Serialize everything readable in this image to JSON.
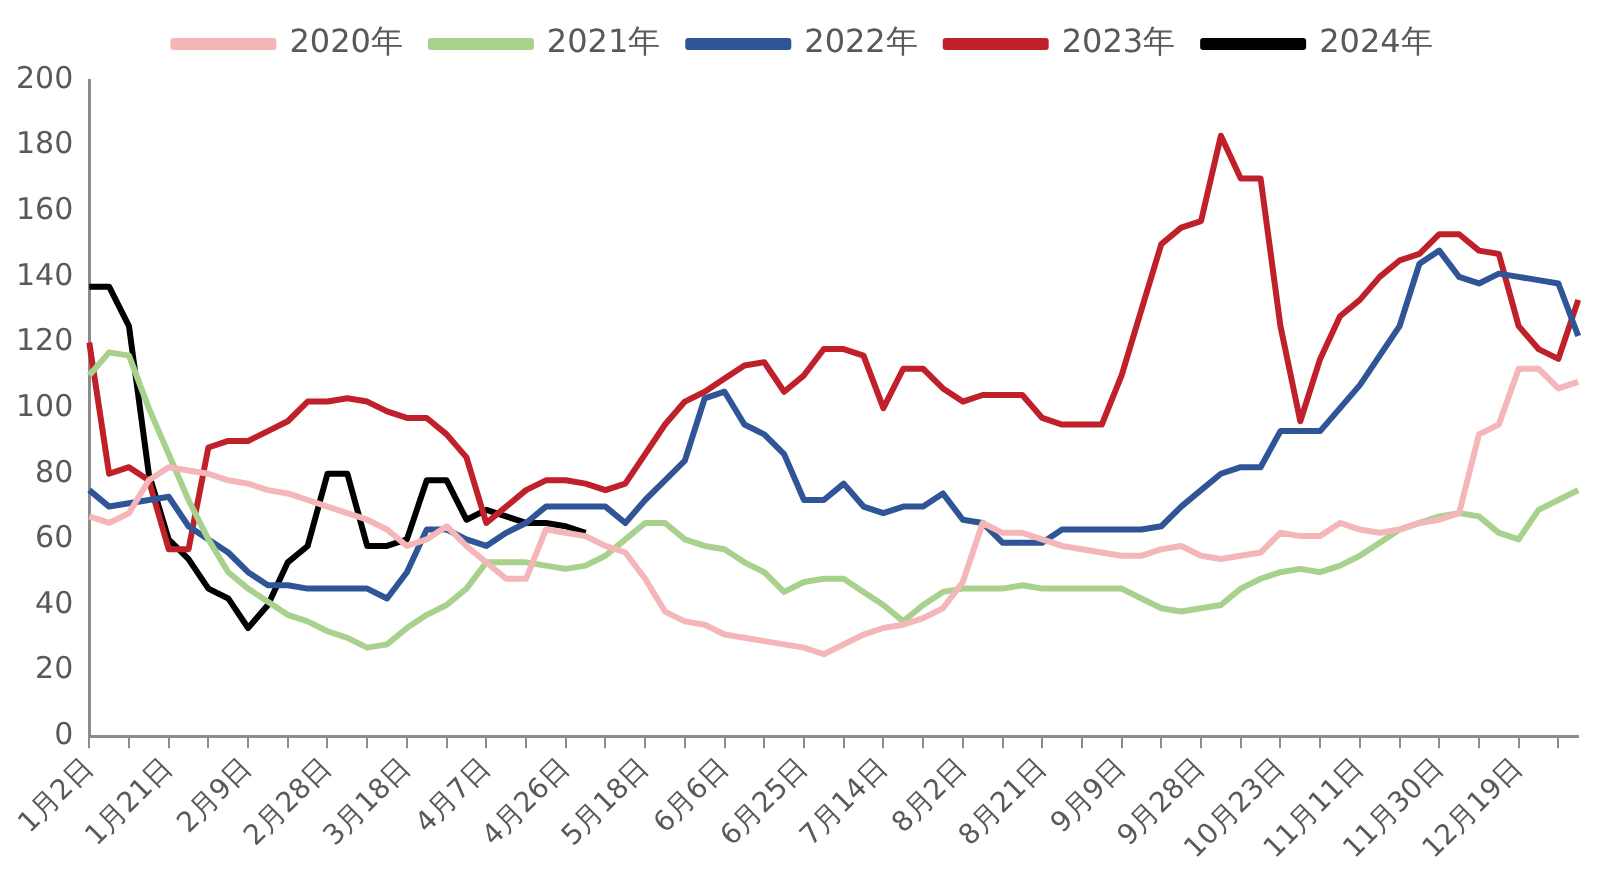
{
  "chart_data": {
    "type": "line",
    "legend": "top",
    "marker": "none",
    "categories": [
      "1月2日",
      null,
      null,
      null,
      "1月21日",
      null,
      null,
      null,
      "2月9日",
      null,
      null,
      null,
      "2月28日",
      null,
      null,
      null,
      "3月18日",
      null,
      null,
      null,
      "4月7日",
      null,
      null,
      null,
      "4月26日",
      null,
      null,
      null,
      "5月18日",
      null,
      null,
      null,
      "6月6日",
      null,
      null,
      null,
      "6月25日",
      null,
      null,
      null,
      "7月14日",
      null,
      null,
      null,
      "8月2日",
      null,
      null,
      null,
      "8月21日",
      null,
      null,
      null,
      "9月9日",
      null,
      null,
      null,
      "9月28日",
      null,
      null,
      null,
      "10月23日",
      null,
      null,
      null,
      "11月11日",
      null,
      null,
      null,
      "11月30日",
      null,
      null,
      null,
      "12月19日",
      null,
      null,
      null
    ],
    "ylim": [
      0,
      200
    ],
    "yticks": [
      0,
      20,
      40,
      60,
      80,
      100,
      120,
      140,
      160,
      180,
      200
    ],
    "series": [
      {
        "name": "2020年",
        "color": "#f4b6b8",
        "values": [
          67,
          65,
          68,
          78,
          82,
          81,
          80,
          78,
          77,
          75,
          74,
          72,
          70,
          68,
          66,
          63,
          58,
          60,
          64,
          58,
          53,
          48,
          48,
          63,
          62,
          61,
          58,
          56,
          48,
          38,
          35,
          34,
          31,
          30,
          29,
          28,
          27,
          25,
          28,
          31,
          33,
          34,
          36,
          39,
          47,
          65,
          62,
          62,
          60,
          58,
          57,
          56,
          55,
          55,
          57,
          58,
          55,
          54,
          55,
          56,
          62,
          61,
          61,
          65,
          63,
          62,
          63,
          65,
          66,
          68,
          92,
          95,
          112,
          112,
          106,
          108
        ]
      },
      {
        "name": "2021年",
        "color": "#a9d18e",
        "values": [
          110,
          117,
          116,
          100,
          86,
          72,
          60,
          50,
          45,
          41,
          37,
          35,
          32,
          30,
          27,
          28,
          33,
          37,
          40,
          45,
          53,
          53,
          53,
          52,
          51,
          52,
          55,
          60,
          65,
          65,
          60,
          58,
          57,
          53,
          50,
          44,
          47,
          48,
          48,
          44,
          40,
          35,
          40,
          44,
          45,
          45,
          45,
          46,
          45,
          45,
          45,
          45,
          45,
          42,
          39,
          38,
          39,
          40,
          45,
          48,
          50,
          51,
          50,
          52,
          55,
          59,
          63,
          65,
          67,
          68,
          67,
          62,
          60,
          69,
          72,
          75
        ]
      },
      {
        "name": "2022年",
        "color": "#2f5597",
        "values": [
          75,
          70,
          71,
          72,
          73,
          64,
          60,
          56,
          50,
          46,
          46,
          45,
          45,
          45,
          45,
          42,
          50,
          63,
          63,
          60,
          58,
          62,
          65,
          70,
          70,
          70,
          70,
          65,
          72,
          78,
          84,
          103,
          105,
          95,
          92,
          86,
          72,
          72,
          77,
          70,
          68,
          70,
          70,
          74,
          66,
          65,
          59,
          59,
          59,
          63,
          63,
          63,
          63,
          63,
          64,
          70,
          75,
          80,
          82,
          82,
          93,
          93,
          93,
          100,
          107,
          116,
          125,
          144,
          148,
          140,
          138,
          141,
          140,
          139,
          138,
          122
        ]
      },
      {
        "name": "2023年",
        "color": "#c0202a",
        "values": [
          120,
          80,
          82,
          78,
          57,
          57,
          88,
          90,
          90,
          93,
          96,
          102,
          102,
          103,
          102,
          99,
          97,
          97,
          92,
          85,
          65,
          70,
          75,
          78,
          78,
          77,
          75,
          77,
          86,
          95,
          102,
          105,
          109,
          113,
          114,
          105,
          110,
          118,
          118,
          116,
          100,
          112,
          112,
          106,
          102,
          104,
          104,
          104,
          97,
          95,
          95,
          95,
          110,
          130,
          150,
          155,
          157,
          183,
          170,
          170,
          125,
          96,
          115,
          128,
          133,
          140,
          145,
          147,
          153,
          153,
          148,
          147,
          125,
          118,
          115,
          133
        ]
      },
      {
        "name": "2024年",
        "color": "#000000",
        "values": [
          137,
          137,
          125,
          80,
          60,
          54,
          45,
          42,
          33,
          40,
          53,
          58,
          80,
          80,
          58,
          58,
          60,
          78,
          78,
          66,
          69,
          67,
          65,
          65,
          64,
          62,
          null,
          null,
          null,
          null,
          null,
          null,
          null,
          null,
          null,
          null,
          null,
          null,
          null,
          null,
          null,
          null,
          null,
          null,
          null,
          null,
          null,
          null,
          null,
          null,
          null,
          null,
          null,
          null,
          null,
          null,
          null,
          null,
          null,
          null,
          null,
          null,
          null,
          null,
          null,
          null,
          null,
          null,
          null,
          null,
          null,
          null,
          null,
          null,
          null,
          null
        ]
      }
    ]
  }
}
